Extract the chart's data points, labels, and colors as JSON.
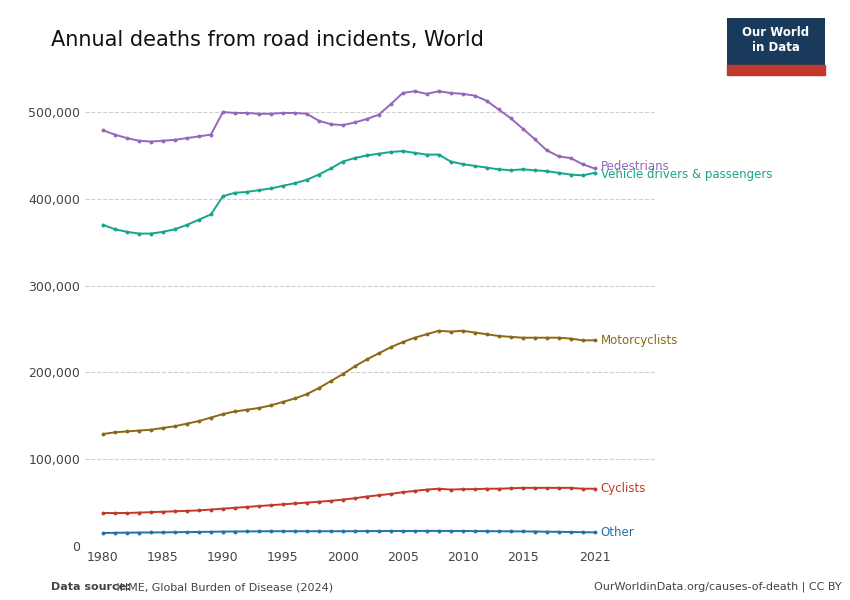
{
  "title": "Annual deaths from road incidents, World",
  "source_text_bold": "Data source:",
  "source_text_regular": " IHME, Global Burden of Disease (2024)",
  "owid_text": "OurWorldinData.org/causes-of-death | CC BY",
  "background_color": "#ffffff",
  "grid_color": "#d0d0d0",
  "years": [
    1980,
    1981,
    1982,
    1983,
    1984,
    1985,
    1986,
    1987,
    1988,
    1989,
    1990,
    1991,
    1992,
    1993,
    1994,
    1995,
    1996,
    1997,
    1998,
    1999,
    2000,
    2001,
    2002,
    2003,
    2004,
    2005,
    2006,
    2007,
    2008,
    2009,
    2010,
    2011,
    2012,
    2013,
    2014,
    2015,
    2016,
    2017,
    2018,
    2019,
    2020,
    2021
  ],
  "pedestrians": [
    479000,
    474000,
    470000,
    467000,
    466000,
    467000,
    468000,
    470000,
    472000,
    474000,
    500000,
    499000,
    499000,
    498000,
    498000,
    499000,
    499000,
    498000,
    490000,
    486000,
    485000,
    488000,
    492000,
    497000,
    509000,
    522000,
    524000,
    521000,
    524000,
    522000,
    521000,
    519000,
    513000,
    503000,
    493000,
    481000,
    469000,
    456000,
    449000,
    447000,
    440000,
    435000
  ],
  "vehicle": [
    370000,
    365000,
    362000,
    360000,
    360000,
    362000,
    365000,
    370000,
    376000,
    382000,
    403000,
    407000,
    408000,
    410000,
    412000,
    415000,
    418000,
    422000,
    428000,
    435000,
    443000,
    447000,
    450000,
    452000,
    454000,
    455000,
    453000,
    451000,
    451000,
    443000,
    440000,
    438000,
    436000,
    434000,
    433000,
    434000,
    433000,
    432000,
    430000,
    428000,
    427000,
    430000
  ],
  "motorcyclists": [
    129000,
    131000,
    132000,
    133000,
    134000,
    136000,
    138000,
    141000,
    144000,
    148000,
    152000,
    155000,
    157000,
    159000,
    162000,
    166000,
    170000,
    175000,
    182000,
    190000,
    198000,
    207000,
    215000,
    222000,
    229000,
    235000,
    240000,
    244000,
    248000,
    247000,
    248000,
    246000,
    244000,
    242000,
    241000,
    240000,
    240000,
    240000,
    240000,
    239000,
    237000,
    237000
  ],
  "cyclists": [
    38000,
    38000,
    38000,
    38500,
    39000,
    39500,
    40000,
    40500,
    41000,
    42000,
    43000,
    44000,
    45000,
    46000,
    47000,
    48000,
    49000,
    50000,
    51000,
    52000,
    53500,
    55000,
    57000,
    58500,
    60000,
    62000,
    63500,
    65000,
    66000,
    65000,
    65500,
    65500,
    66000,
    66000,
    66500,
    67000,
    67000,
    67000,
    67000,
    67000,
    66000,
    66000
  ],
  "other": [
    15000,
    15200,
    15400,
    15500,
    15600,
    15700,
    15900,
    16000,
    16200,
    16400,
    16600,
    16700,
    16800,
    16900,
    17000,
    17000,
    17000,
    17000,
    17000,
    17000,
    17000,
    17100,
    17200,
    17200,
    17300,
    17300,
    17300,
    17400,
    17400,
    17300,
    17300,
    17200,
    17100,
    17000,
    16900,
    16800,
    16700,
    16500,
    16300,
    16100,
    15900,
    15700
  ],
  "pedestrians_color": "#9467bd",
  "vehicle_color": "#17a589",
  "motorcyclists_color": "#8B6914",
  "cyclists_color": "#c0392b",
  "other_color": "#2471a3",
  "ylim": [
    0,
    560000
  ],
  "yticks": [
    0,
    100000,
    200000,
    300000,
    400000,
    500000
  ],
  "xticks": [
    1980,
    1985,
    1990,
    1995,
    2000,
    2005,
    2010,
    2015,
    2021
  ],
  "label_pedestrians": "Pedestrians",
  "label_vehicle": "Vehicle drivers & passengers",
  "label_motorcyclists": "Motorcyclists",
  "label_cyclists": "Cyclists",
  "label_other": "Other",
  "xlim_left": 1978.5,
  "xlim_right": 2026
}
